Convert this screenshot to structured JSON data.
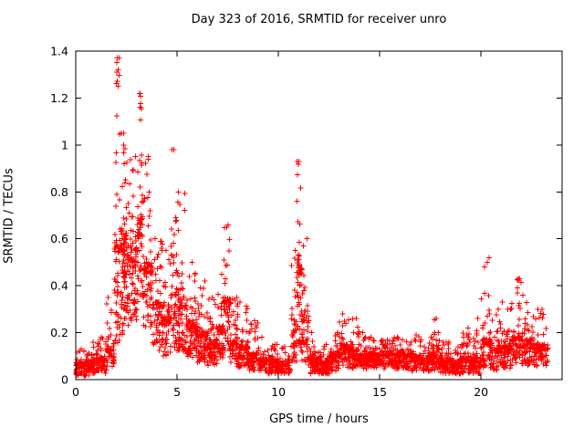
{
  "chart_data": {
    "type": "scatter",
    "title": "Day 323 of 2016, SRMTID for receiver unro",
    "xlabel": "GPS time / hours",
    "ylabel": "SRMTID / TECUs",
    "xlim": [
      0,
      24
    ],
    "ylim": [
      0,
      1.4
    ],
    "xticks": [
      {
        "v": 0,
        "label": "0"
      },
      {
        "v": 5,
        "label": "5"
      },
      {
        "v": 10,
        "label": "10"
      },
      {
        "v": 15,
        "label": "15"
      },
      {
        "v": 20,
        "label": "20"
      }
    ],
    "yticks": [
      {
        "v": 0.0,
        "label": "0"
      },
      {
        "v": 0.2,
        "label": "0.2"
      },
      {
        "v": 0.4,
        "label": "0.4"
      },
      {
        "v": 0.6,
        "label": "0.6"
      },
      {
        "v": 0.8,
        "label": "0.8"
      },
      {
        "v": 1.0,
        "label": "1"
      },
      {
        "v": 1.2,
        "label": "1.2"
      },
      {
        "v": 1.4,
        "label": "1.4"
      }
    ],
    "grid": false,
    "legend": "none",
    "marker": "plus",
    "marker_size_px": 6,
    "marker_color": "#ff0000",
    "axis_color": "#000000",
    "background": "#ffffff",
    "notable_peaks": [
      {
        "x": 2.05,
        "y": 1.37
      },
      {
        "x": 2.02,
        "y": 1.31
      },
      {
        "x": 2.1,
        "y": 1.25
      },
      {
        "x": 3.15,
        "y": 1.22
      },
      {
        "x": 3.18,
        "y": 1.16
      },
      {
        "x": 4.85,
        "y": 0.98
      },
      {
        "x": 11.0,
        "y": 0.93
      },
      {
        "x": 7.45,
        "y": 0.65
      },
      {
        "x": 20.3,
        "y": 0.5
      },
      {
        "x": 21.9,
        "y": 0.43
      },
      {
        "x": 23.0,
        "y": 0.3
      }
    ],
    "density_bins_format": [
      "x_start",
      "x_end",
      "n_points",
      "y_min",
      "y_typical",
      "y_max"
    ],
    "density_bins": [
      [
        0.0,
        0.5,
        70,
        0.01,
        0.06,
        0.13
      ],
      [
        0.5,
        1.0,
        70,
        0.01,
        0.07,
        0.16
      ],
      [
        1.0,
        1.5,
        70,
        0.02,
        0.08,
        0.18
      ],
      [
        1.5,
        1.9,
        50,
        0.03,
        0.12,
        0.35
      ],
      [
        1.9,
        2.15,
        50,
        0.1,
        0.5,
        1.37
      ],
      [
        2.15,
        2.5,
        90,
        0.15,
        0.55,
        1.05
      ],
      [
        2.5,
        3.0,
        90,
        0.2,
        0.5,
        0.95
      ],
      [
        3.0,
        3.3,
        60,
        0.25,
        0.6,
        1.22
      ],
      [
        3.3,
        3.8,
        80,
        0.2,
        0.45,
        0.95
      ],
      [
        3.8,
        4.3,
        70,
        0.1,
        0.3,
        0.6
      ],
      [
        4.3,
        4.7,
        60,
        0.08,
        0.25,
        0.55
      ],
      [
        4.7,
        5.0,
        50,
        0.1,
        0.35,
        0.98
      ],
      [
        5.0,
        5.5,
        80,
        0.1,
        0.3,
        0.8
      ],
      [
        5.5,
        6.0,
        80,
        0.08,
        0.22,
        0.5
      ],
      [
        6.0,
        6.5,
        80,
        0.06,
        0.18,
        0.42
      ],
      [
        6.5,
        7.0,
        80,
        0.05,
        0.15,
        0.35
      ],
      [
        7.0,
        7.3,
        50,
        0.08,
        0.2,
        0.45
      ],
      [
        7.3,
        7.6,
        45,
        0.1,
        0.3,
        0.66
      ],
      [
        7.6,
        8.0,
        60,
        0.05,
        0.15,
        0.35
      ],
      [
        8.0,
        8.5,
        70,
        0.04,
        0.13,
        0.33
      ],
      [
        8.5,
        9.0,
        70,
        0.03,
        0.1,
        0.25
      ],
      [
        9.0,
        9.5,
        70,
        0.03,
        0.08,
        0.18
      ],
      [
        9.5,
        10.0,
        70,
        0.02,
        0.07,
        0.15
      ],
      [
        10.0,
        10.6,
        70,
        0.02,
        0.06,
        0.14
      ],
      [
        10.6,
        10.9,
        40,
        0.05,
        0.2,
        0.55
      ],
      [
        10.9,
        11.15,
        55,
        0.1,
        0.45,
        0.93
      ],
      [
        11.15,
        11.5,
        50,
        0.05,
        0.25,
        0.6
      ],
      [
        11.5,
        12.0,
        70,
        0.02,
        0.08,
        0.2
      ],
      [
        12.0,
        12.5,
        70,
        0.02,
        0.07,
        0.15
      ],
      [
        12.5,
        13.0,
        70,
        0.03,
        0.09,
        0.2
      ],
      [
        13.0,
        13.5,
        70,
        0.04,
        0.13,
        0.28
      ],
      [
        13.5,
        14.0,
        70,
        0.04,
        0.12,
        0.26
      ],
      [
        14.0,
        14.5,
        70,
        0.04,
        0.1,
        0.2
      ],
      [
        14.5,
        15.0,
        70,
        0.04,
        0.1,
        0.18
      ],
      [
        15.0,
        15.5,
        70,
        0.04,
        0.1,
        0.17
      ],
      [
        15.5,
        16.0,
        70,
        0.04,
        0.1,
        0.18
      ],
      [
        16.0,
        16.5,
        70,
        0.04,
        0.1,
        0.17
      ],
      [
        16.5,
        17.0,
        70,
        0.03,
        0.09,
        0.19
      ],
      [
        17.0,
        17.5,
        70,
        0.03,
        0.08,
        0.17
      ],
      [
        17.5,
        18.0,
        70,
        0.03,
        0.1,
        0.26
      ],
      [
        18.0,
        18.5,
        70,
        0.02,
        0.08,
        0.16
      ],
      [
        18.5,
        19.0,
        70,
        0.02,
        0.07,
        0.14
      ],
      [
        19.0,
        19.5,
        70,
        0.02,
        0.08,
        0.22
      ],
      [
        19.5,
        20.0,
        70,
        0.02,
        0.08,
        0.26
      ],
      [
        20.0,
        20.45,
        60,
        0.04,
        0.15,
        0.52
      ],
      [
        20.45,
        21.0,
        70,
        0.03,
        0.12,
        0.3
      ],
      [
        21.0,
        21.5,
        70,
        0.04,
        0.13,
        0.33
      ],
      [
        21.5,
        22.0,
        70,
        0.05,
        0.16,
        0.43
      ],
      [
        22.0,
        22.5,
        70,
        0.05,
        0.15,
        0.36
      ],
      [
        22.5,
        23.3,
        90,
        0.05,
        0.13,
        0.3
      ]
    ]
  }
}
